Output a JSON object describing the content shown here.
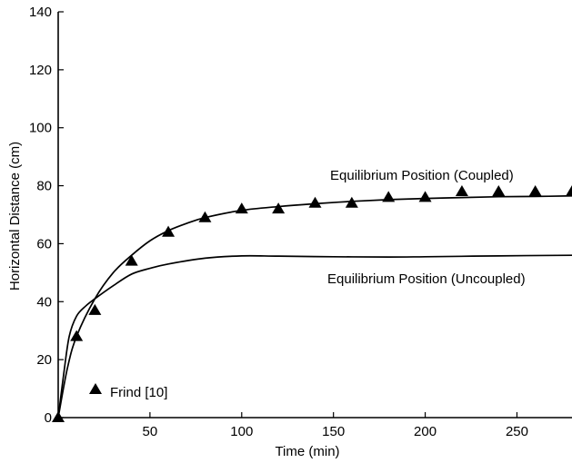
{
  "chart_data": {
    "type": "line",
    "title": "",
    "xlabel": "Time (min)",
    "ylabel": "Horizontal Distance (cm)",
    "xlim": [
      0,
      280
    ],
    "ylim": [
      0,
      140
    ],
    "x_ticks": [
      50,
      100,
      150,
      200,
      250
    ],
    "y_ticks": [
      0,
      20,
      40,
      60,
      80,
      100,
      120,
      140
    ],
    "grid": false,
    "series": [
      {
        "name": "Equilibrium Position (Coupled)",
        "type": "line",
        "color": "#000000",
        "x": [
          0,
          5,
          10,
          20,
          30,
          40,
          50,
          60,
          70,
          80,
          100,
          120,
          140,
          160,
          180,
          200,
          220,
          240,
          260,
          280
        ],
        "y": [
          0,
          17,
          28,
          41,
          50,
          56,
          61,
          64.5,
          67,
          69,
          71.5,
          72.8,
          73.8,
          74.6,
          75.2,
          75.6,
          75.9,
          76.2,
          76.3,
          76.5
        ]
      },
      {
        "name": "Equilibrium Position (Uncoupled)",
        "type": "line",
        "color": "#000000",
        "x": [
          0,
          3,
          6,
          10,
          15,
          20,
          30,
          40,
          50,
          60,
          80,
          100,
          120,
          150,
          180,
          200,
          240,
          280
        ],
        "y": [
          0,
          15,
          28,
          35,
          38.5,
          41,
          45.5,
          49.5,
          51.5,
          53,
          55,
          55.8,
          55.7,
          55.5,
          55.4,
          55.5,
          55.8,
          56
        ]
      },
      {
        "name": "Frind [10]",
        "type": "scatter",
        "marker": "triangle",
        "color": "#000000",
        "x": [
          0,
          10,
          20,
          40,
          60,
          80,
          100,
          120,
          140,
          160,
          180,
          200,
          220,
          240,
          260,
          280
        ],
        "y": [
          0,
          28,
          37,
          54,
          64,
          69,
          72,
          72,
          74,
          74,
          76,
          76,
          78,
          78,
          78,
          78
        ]
      }
    ],
    "annotations": {
      "coupled": "Equilibrium Position (Coupled)",
      "uncoupled": "Equilibrium Position (Uncoupled)",
      "legend": "Frind [10]"
    }
  }
}
